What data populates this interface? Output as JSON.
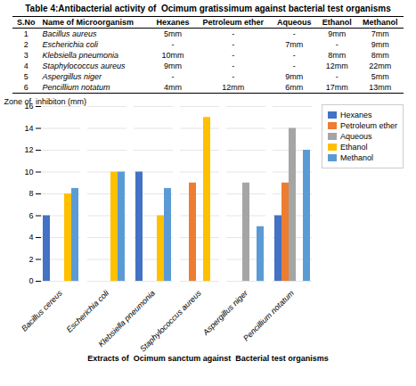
{
  "chart_data": [
    {
      "type": "table",
      "title": "Table 4:Antibacterial activity of  Ocimum gratissimum against bacterial test organisms",
      "columns": [
        "S.No",
        "Name of Microorganism",
        "Hexanes",
        "Petroleum ether",
        "Aqueous",
        "Ethanol",
        "Methanol"
      ],
      "rows": [
        [
          "1",
          "Bacillus aureus",
          "5mm",
          "-",
          "-",
          "9mm",
          "7mm"
        ],
        [
          "2",
          "Escherichia coli",
          "-",
          "-",
          "7mm",
          "-",
          "9mm"
        ],
        [
          "3",
          "Klebsiella pneumonia",
          "10mm",
          "-",
          "-",
          "8mm",
          "8mm"
        ],
        [
          "4",
          "Staphylococcus aureus",
          "9mm",
          "-",
          "-",
          "12mm",
          "22mm"
        ],
        [
          "5",
          "Aspergillus niger",
          "-",
          "-",
          "9mm",
          "-",
          "5mm"
        ],
        [
          "6",
          "Pencillium notatum",
          "4mm",
          "12mm",
          "6mm",
          "17mm",
          "13mm"
        ]
      ]
    },
    {
      "type": "bar",
      "categories": [
        "Bacillus cereus",
        "Escherichia coli",
        "Klebsiella pneumonia",
        "Staphylococcus aureus",
        "Aspergillus niger",
        "Pencillium notatum"
      ],
      "series": [
        {
          "name": "Hexanes",
          "color": "#4472C4",
          "values": [
            6,
            0,
            10,
            0,
            0,
            6
          ]
        },
        {
          "name": "Petroleum ether",
          "color": "#ED7D31",
          "values": [
            0,
            0,
            0,
            9,
            0,
            9
          ]
        },
        {
          "name": "Aqueous",
          "color": "#A5A5A5",
          "values": [
            0,
            0,
            0,
            0,
            9,
            14
          ]
        },
        {
          "name": "Ethanol",
          "color": "#FFC000",
          "values": [
            8,
            10,
            6,
            15,
            0,
            0
          ]
        },
        {
          "name": "Methanol",
          "color": "#5B9BD5",
          "values": [
            8.5,
            10,
            8.5,
            0,
            5,
            12
          ]
        }
      ],
      "ylabel": "Zone of  inhibiton (mm)",
      "xlabel": "Extracts of  Ocimum sanctum against  Bacterial test organisms",
      "ylim": [
        0,
        16
      ],
      "yticks": [
        0,
        2,
        4,
        6,
        8,
        10,
        12,
        14,
        16
      ],
      "grid": true,
      "legend": "right"
    }
  ]
}
